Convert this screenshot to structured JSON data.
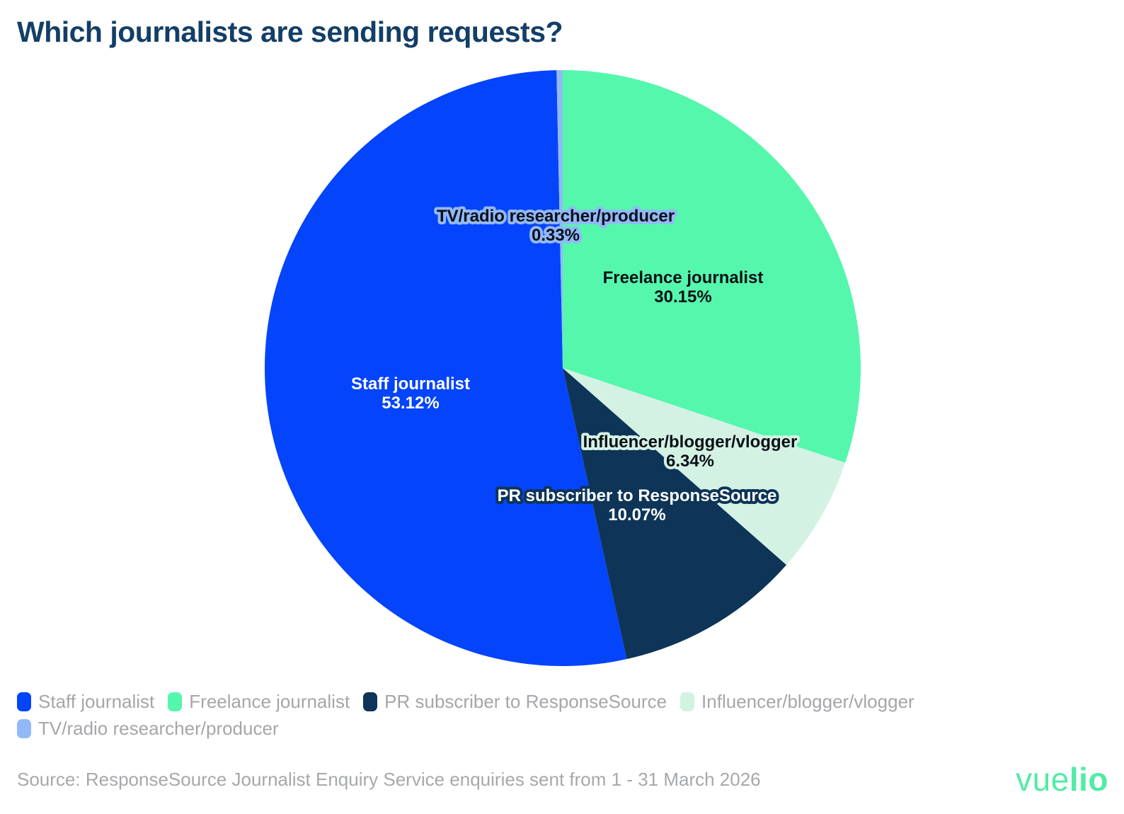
{
  "title": "Which journalists are sending requests?",
  "source_note": "Source: ResponseSource Journalist Enquiry Service enquiries sent from 1 - 31 March 2026",
  "logo": {
    "light": "vue",
    "bold": "lio",
    "color": "#53EBA6"
  },
  "colors": {
    "title_text": "#133E67",
    "legend_text": "#A4A6A9",
    "source_text": "#A6A8AB",
    "background": "#FFFFFF"
  },
  "chart_data": {
    "type": "pie",
    "title": "Which journalists are sending requests?",
    "start_angle_deg": 0,
    "direction": "clockwise",
    "legend_position": "bottom-left",
    "slices": [
      {
        "label": "Freelance journalist",
        "value": 30.15,
        "color": "#55F7AC",
        "text_color": "#0A1017",
        "halo_color": null,
        "label_offset": [
          170,
          -115
        ]
      },
      {
        "label": "Influencer/blogger/vlogger",
        "value": 6.34,
        "color": "#D3F2E4",
        "text_color": "#0A1017",
        "halo_color": "#D3F2E4",
        "label_offset": [
          180,
          117
        ]
      },
      {
        "label": "PR subscriber to ResponseSource",
        "value": 10.07,
        "color": "#0E3458",
        "text_color": "#FFFFFF",
        "halo_color": "#0E3458",
        "label_offset": [
          105,
          193
        ]
      },
      {
        "label": "Staff journalist",
        "value": 53.12,
        "color": "#0444FA",
        "text_color": "#FFFFFF",
        "halo_color": null,
        "label_offset": [
          -215,
          35
        ]
      },
      {
        "label": "TV/radio researcher/producer",
        "value": 0.33,
        "color": "#92B8F8",
        "text_color": "#0A1017",
        "halo_color": "#92B8F8",
        "label_offset": [
          -10,
          -202
        ]
      }
    ],
    "legend_items": [
      {
        "label": "Staff journalist",
        "color": "#0444FA"
      },
      {
        "label": "Freelance journalist",
        "color": "#55F7AC"
      },
      {
        "label": "PR subscriber to ResponseSource",
        "color": "#0E3458"
      },
      {
        "label": "Influencer/blogger/vlogger",
        "color": "#D3F2E4"
      },
      {
        "label": "TV/radio researcher/producer",
        "color": "#92B8F8"
      }
    ]
  }
}
